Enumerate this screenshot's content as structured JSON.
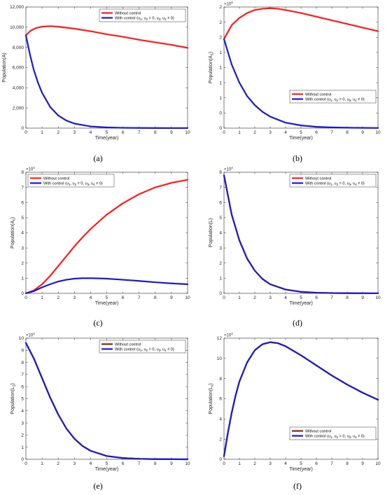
{
  "chart_data": [
    {
      "type": "line",
      "caption": "(a)",
      "xlabel": "Time(year)",
      "ylabel": "Population(A)",
      "exponent": "",
      "xlim": [
        0,
        10
      ],
      "ylim": [
        0,
        12000
      ],
      "xticks": [
        0,
        1,
        2,
        3,
        4,
        5,
        6,
        7,
        8,
        9,
        10
      ],
      "yticks": [
        0,
        2000,
        4000,
        6000,
        8000,
        10000,
        12000
      ],
      "ytick_labels": [
        "0",
        "2,000",
        "4,000",
        "6,000",
        "8,000",
        "10,000",
        "12,000"
      ],
      "legend_position": "top-right",
      "series": [
        {
          "name": "Without control",
          "color": "#ff1a1a",
          "x": [
            0,
            0.3,
            0.6,
            1,
            1.5,
            2,
            3,
            4,
            5,
            6,
            7,
            8,
            9,
            10
          ],
          "y": [
            9200,
            9650,
            9900,
            10050,
            10100,
            10050,
            9850,
            9600,
            9300,
            9050,
            8750,
            8500,
            8250,
            7950
          ]
        },
        {
          "name": "With control",
          "color": "#1a1acc",
          "x": [
            0,
            0.25,
            0.5,
            0.75,
            1,
            1.5,
            2,
            2.5,
            3,
            4,
            5,
            6,
            7,
            8,
            9,
            10
          ],
          "y": [
            9200,
            7300,
            5700,
            4500,
            3500,
            2100,
            1250,
            750,
            450,
            170,
            70,
            30,
            15,
            8,
            5,
            3
          ]
        }
      ]
    },
    {
      "type": "line",
      "caption": "(b)",
      "xlabel": "Time(year)",
      "ylabel": "Population(A",
      "ylabel_sub": "1",
      "exponent": "4",
      "xlim": [
        0,
        10
      ],
      "ylim": [
        0,
        2
      ],
      "xticks": [
        0,
        1,
        2,
        3,
        4,
        5,
        6,
        7,
        8,
        9,
        10
      ],
      "yticks": [
        0,
        0.25,
        0.5,
        0.75,
        1,
        1.25,
        1.5,
        1.75,
        2
      ],
      "ytick_labels": [
        "0",
        "0",
        "1",
        "1",
        "1",
        "1",
        "2",
        "2",
        "2"
      ],
      "legend_position": "bottom-right",
      "series": [
        {
          "name": "Without control",
          "color": "#ff1a1a",
          "x": [
            0,
            0.5,
            1,
            1.5,
            2,
            2.5,
            3,
            3.5,
            4,
            5,
            6,
            7,
            8,
            9,
            10
          ],
          "y": [
            1.47,
            1.7,
            1.82,
            1.9,
            1.95,
            1.97,
            1.98,
            1.97,
            1.95,
            1.9,
            1.84,
            1.78,
            1.72,
            1.66,
            1.6
          ]
        },
        {
          "name": "With control",
          "color": "#1a1acc",
          "x": [
            0,
            0.5,
            1,
            1.5,
            2,
            2.5,
            3,
            4,
            5,
            6,
            7,
            8,
            9,
            10
          ],
          "y": [
            1.47,
            1.05,
            0.75,
            0.53,
            0.38,
            0.27,
            0.19,
            0.09,
            0.045,
            0.022,
            0.012,
            0.007,
            0.004,
            0.002
          ]
        }
      ]
    },
    {
      "type": "line",
      "caption": "(c)",
      "xlabel": "Time(year)",
      "ylabel": "Population(A",
      "ylabel_sub": "c",
      "exponent": "4",
      "xlim": [
        0,
        10
      ],
      "ylim": [
        0,
        8
      ],
      "xticks": [
        0,
        1,
        2,
        3,
        4,
        5,
        6,
        7,
        8,
        9,
        10
      ],
      "yticks": [
        0,
        1,
        2,
        3,
        4,
        5,
        6,
        7,
        8
      ],
      "ytick_labels": [
        "0",
        "1",
        "2",
        "3",
        "4",
        "5",
        "6",
        "7",
        "8"
      ],
      "legend_position": "top-left",
      "series": [
        {
          "name": "Without control",
          "color": "#ff1a1a",
          "x": [
            0,
            0.5,
            1,
            1.5,
            2,
            2.5,
            3,
            3.5,
            4,
            5,
            6,
            7,
            8,
            9,
            10
          ],
          "y": [
            0,
            0.2,
            0.6,
            1.15,
            1.8,
            2.45,
            3.1,
            3.7,
            4.25,
            5.2,
            5.95,
            6.55,
            7.0,
            7.3,
            7.5
          ]
        },
        {
          "name": "With control",
          "color": "#1a1acc",
          "x": [
            0,
            0.5,
            1,
            1.5,
            2,
            2.5,
            3,
            3.5,
            4,
            4.5,
            5,
            6,
            7,
            8,
            9,
            10
          ],
          "y": [
            0,
            0.15,
            0.4,
            0.6,
            0.78,
            0.9,
            0.97,
            1.0,
            1.0,
            0.99,
            0.97,
            0.9,
            0.82,
            0.73,
            0.66,
            0.6
          ]
        }
      ]
    },
    {
      "type": "line",
      "caption": "(d)",
      "xlabel": "Time(year)",
      "ylabel": "Population(L)",
      "exponent": "4",
      "xlim": [
        0,
        10
      ],
      "ylim": [
        0,
        8
      ],
      "xticks": [
        0,
        1,
        2,
        3,
        4,
        5,
        6,
        7,
        8,
        9,
        10
      ],
      "yticks": [
        0,
        1,
        2,
        3,
        4,
        5,
        6,
        7,
        8
      ],
      "ytick_labels": [
        "0",
        "1",
        "2",
        "3",
        "4",
        "5",
        "6",
        "7",
        "8"
      ],
      "legend_position": "top-right",
      "series": [
        {
          "name": "Without control",
          "color": "#ff1a1a",
          "x": [
            0,
            0.5,
            1,
            1.5,
            2,
            2.5,
            3,
            4,
            5,
            6,
            7,
            8,
            9,
            10
          ],
          "y": [
            7.8,
            5.2,
            3.5,
            2.3,
            1.5,
            0.95,
            0.6,
            0.25,
            0.1,
            0.04,
            0.02,
            0.01,
            0.005,
            0.002
          ]
        },
        {
          "name": "With control",
          "color": "#1a1acc",
          "x": [
            0,
            0.5,
            1,
            1.5,
            2,
            2.5,
            3,
            4,
            5,
            6,
            7,
            8,
            9,
            10
          ],
          "y": [
            7.8,
            5.2,
            3.5,
            2.3,
            1.5,
            0.95,
            0.6,
            0.25,
            0.1,
            0.04,
            0.02,
            0.01,
            0.005,
            0.002
          ]
        }
      ]
    },
    {
      "type": "line",
      "caption": "(e)",
      "xlabel": "Time(year)",
      "ylabel": "Population(L",
      "ylabel_sub": "1",
      "exponent": "4",
      "xlim": [
        0,
        10
      ],
      "ylim": [
        0,
        10
      ],
      "xticks": [
        0,
        1,
        2,
        3,
        4,
        5,
        6,
        7,
        8,
        9,
        10
      ],
      "yticks": [
        0,
        1,
        2,
        3,
        4,
        5,
        6,
        7,
        8,
        9,
        10
      ],
      "ytick_labels": [
        "0",
        "1",
        "2",
        "3",
        "4",
        "5",
        "6",
        "7",
        "8",
        "9",
        "10"
      ],
      "legend_position": "top-right",
      "series": [
        {
          "name": "Without control",
          "color": "#8b2500",
          "x": [
            0,
            0.5,
            1,
            1.5,
            2,
            2.5,
            3,
            3.5,
            4,
            5,
            6,
            7,
            8,
            9,
            10
          ],
          "y": [
            9.6,
            8.3,
            6.7,
            5.1,
            3.7,
            2.55,
            1.7,
            1.1,
            0.7,
            0.27,
            0.1,
            0.04,
            0.015,
            0.006,
            0.002
          ]
        },
        {
          "name": "With control",
          "color": "#1a1acc",
          "x": [
            0,
            0.5,
            1,
            1.5,
            2,
            2.5,
            3,
            3.5,
            4,
            5,
            6,
            7,
            8,
            9,
            10
          ],
          "y": [
            9.6,
            8.3,
            6.7,
            5.1,
            3.7,
            2.55,
            1.7,
            1.1,
            0.7,
            0.27,
            0.1,
            0.04,
            0.015,
            0.006,
            0.002
          ]
        }
      ]
    },
    {
      "type": "line",
      "caption": "(f)",
      "xlabel": "Time(year)",
      "ylabel": "Population(L",
      "ylabel_sub": "c",
      "exponent": "4",
      "xlim": [
        0,
        10
      ],
      "ylim": [
        0,
        12
      ],
      "xticks": [
        0,
        1,
        2,
        3,
        4,
        5,
        6,
        7,
        8,
        9,
        10
      ],
      "yticks": [
        0,
        2,
        4,
        6,
        8,
        10,
        12
      ],
      "ytick_labels": [
        "0",
        "2",
        "4",
        "6",
        "8",
        "10",
        "12"
      ],
      "legend_position": "bottom-right",
      "series": [
        {
          "name": "Without control",
          "color": "#8b2500",
          "x": [
            0,
            0.25,
            0.5,
            0.75,
            1,
            1.5,
            2,
            2.5,
            3,
            3.5,
            4,
            5,
            6,
            7,
            8,
            9,
            10
          ],
          "y": [
            0.3,
            2.6,
            4.6,
            6.3,
            7.7,
            9.6,
            10.8,
            11.4,
            11.6,
            11.5,
            11.2,
            10.3,
            9.3,
            8.3,
            7.4,
            6.6,
            5.9
          ]
        },
        {
          "name": "With control",
          "color": "#1a1acc",
          "x": [
            0,
            0.25,
            0.5,
            0.75,
            1,
            1.5,
            2,
            2.5,
            3,
            3.5,
            4,
            5,
            6,
            7,
            8,
            9,
            10
          ],
          "y": [
            0.3,
            2.6,
            4.6,
            6.3,
            7.7,
            9.6,
            10.8,
            11.4,
            11.6,
            11.5,
            11.2,
            10.3,
            9.3,
            8.3,
            7.4,
            6.6,
            5.9
          ]
        }
      ]
    }
  ],
  "legend_control_prefix": "With control (u",
  "legend_control_mid": ", u",
  "legend_control_eq": " = 0, u",
  "legend_control_end": " ≠ 0)"
}
